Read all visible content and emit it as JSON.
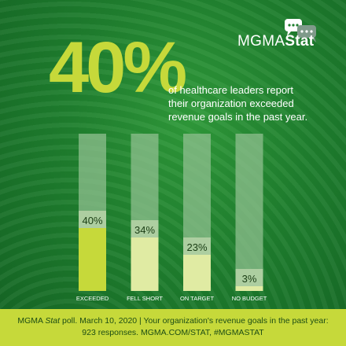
{
  "logo": {
    "mgma": "MGMA",
    "stat": "Stat"
  },
  "headline": {
    "big_value": "40%",
    "line1": "of healthcare leaders report",
    "line2": "their organization exceeded",
    "line3": "revenue goals in the past year."
  },
  "chart_data": {
    "type": "bar",
    "categories": [
      "EXCEEDED",
      "FELL SHORT",
      "ON TARGET",
      "NO BUDGET"
    ],
    "values": [
      40,
      34,
      23,
      3
    ],
    "value_labels": [
      "40%",
      "34%",
      "23%",
      "3%"
    ],
    "ylim": [
      0,
      100
    ],
    "colors": {
      "track": "#8fbf8f",
      "bars": [
        "#c6d93a",
        "#e0eba3",
        "#e0eba3",
        "#e0eba3"
      ],
      "label_band": "#b7d3a8"
    }
  },
  "footer": {
    "source_prefix": "MGMA",
    "source_stat": "Stat",
    "line1_rest": "poll. March 10, 2020  |  Your organization's revenue goals in the past year:",
    "line2": "923 responses. MGMA.COM/STAT, #MGMASTAT"
  }
}
